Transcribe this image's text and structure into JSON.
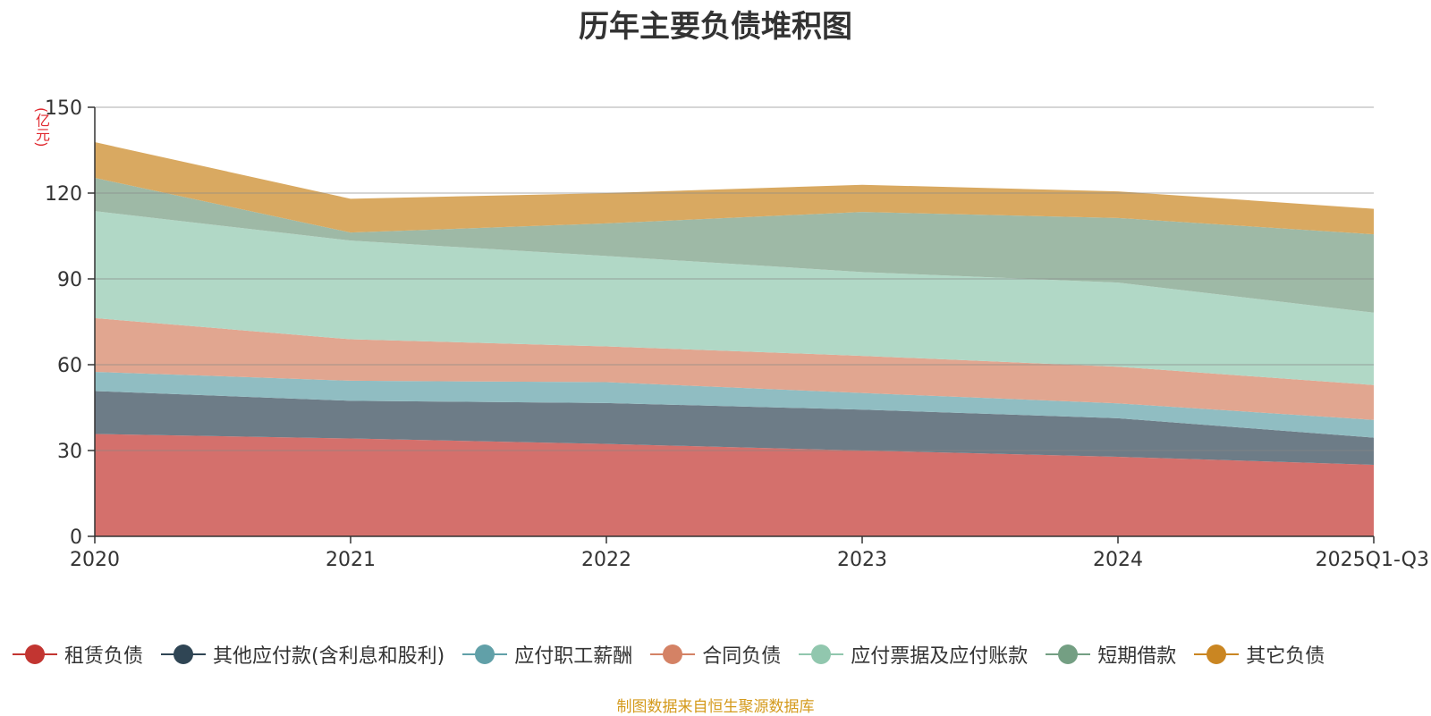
{
  "chart_data": {
    "type": "area",
    "stacked": true,
    "title": "历年主要负债堆积图",
    "unit_label": "(亿元)",
    "x": [
      "2020",
      "2021",
      "2022",
      "2023",
      "2024",
      "2025Q1-Q3"
    ],
    "ylim": [
      0,
      150
    ],
    "yticks": [
      0,
      30,
      60,
      90,
      120,
      150
    ],
    "grid": true,
    "legend_position": "bottom",
    "series": [
      {
        "name": "租赁负债",
        "color": "#c23531",
        "fill": "#d4706c",
        "values": [
          35.8,
          34.2,
          32.3,
          30.0,
          27.8,
          25.0
        ]
      },
      {
        "name": "其他应付款(含利息和股利)",
        "color": "#2f4554",
        "fill": "#6d7c87",
        "values": [
          15.0,
          13.2,
          14.3,
          14.3,
          13.5,
          9.5
        ]
      },
      {
        "name": "应付职工薪酬",
        "color": "#61a0a8",
        "fill": "#90bdc2",
        "values": [
          6.7,
          7.0,
          7.3,
          5.8,
          5.2,
          6.2
        ]
      },
      {
        "name": "合同负债",
        "color": "#d48265",
        "fill": "#e1a690",
        "values": [
          18.8,
          14.5,
          12.5,
          13.0,
          12.8,
          12.2
        ]
      },
      {
        "name": "应付票据及应付账款",
        "color": "#91c7ae",
        "fill": "#b1d8c6",
        "values": [
          37.4,
          34.5,
          31.6,
          29.3,
          29.4,
          25.3
        ]
      },
      {
        "name": "短期借款",
        "color": "#749f83",
        "fill": "#9eb9a6",
        "values": [
          11.6,
          2.8,
          11.4,
          21.0,
          22.6,
          27.4
        ]
      },
      {
        "name": "其它负债",
        "color": "#ca8622",
        "fill": "#d9a961",
        "values": [
          12.5,
          11.8,
          10.6,
          9.5,
          9.3,
          8.9
        ]
      }
    ]
  },
  "source_text": "制图数据来自恒生聚源数据库"
}
